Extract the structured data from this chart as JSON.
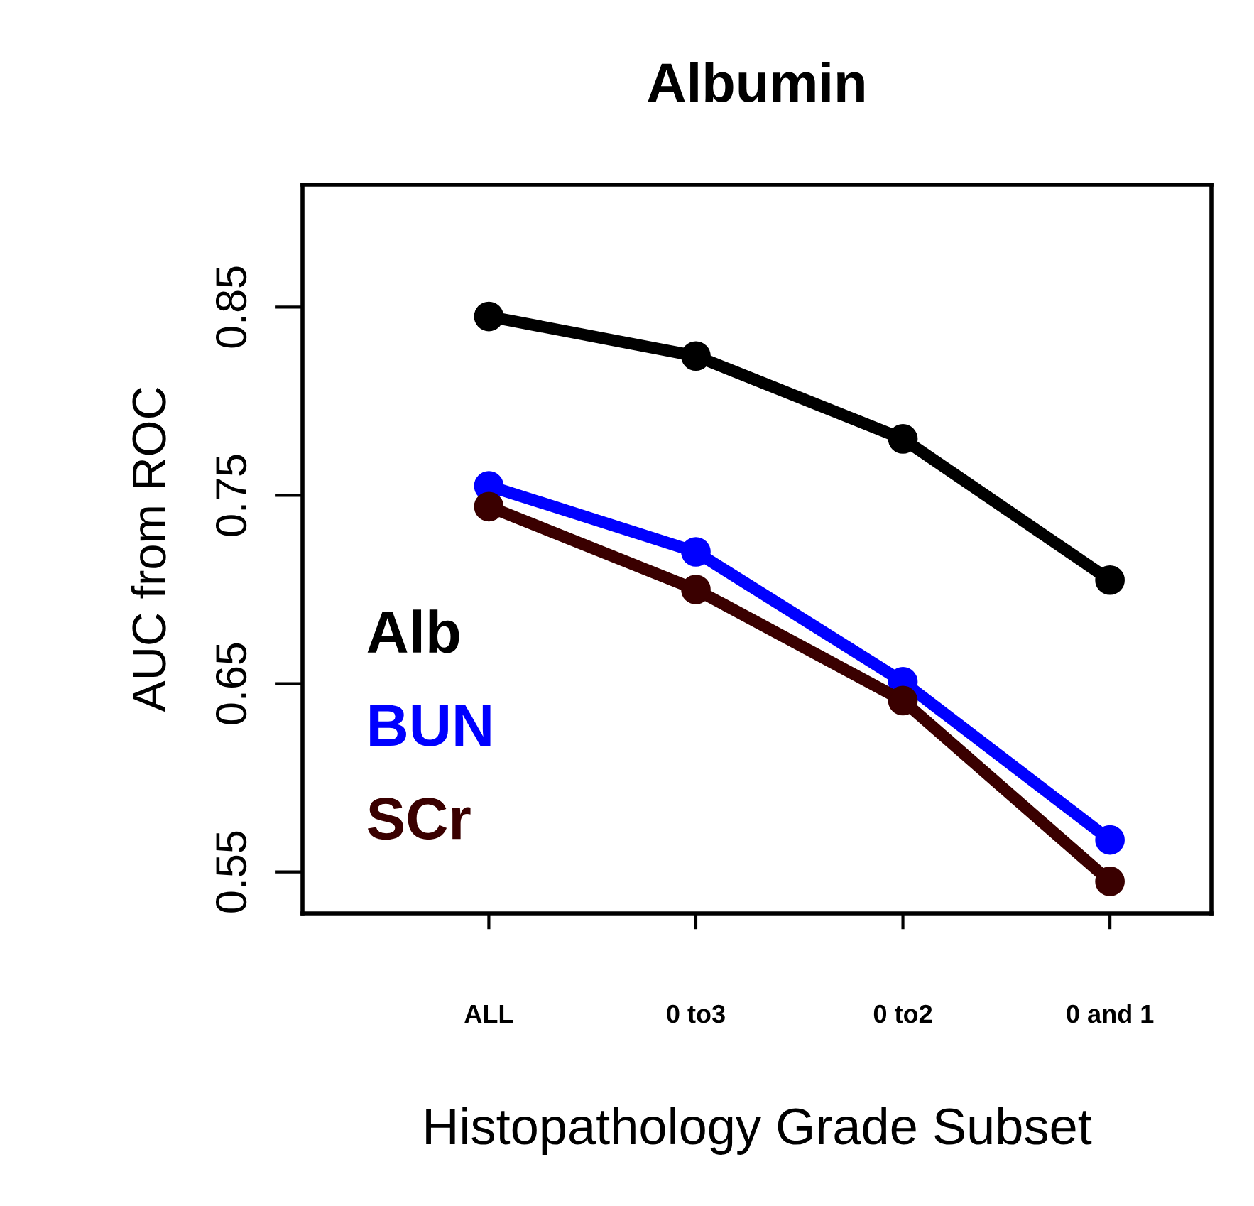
{
  "chart_data": {
    "type": "line",
    "title": "Albumin",
    "xlabel": "Histopathology Grade Subset",
    "ylabel": "AUC from ROC",
    "categories": [
      "ALL",
      "0 to3",
      "0 to2",
      "0 and 1"
    ],
    "series": [
      {
        "name": "Alb",
        "color": "#000000",
        "values": [
          0.845,
          0.824,
          0.78,
          0.705
        ]
      },
      {
        "name": "BUN",
        "color": "#0000ff",
        "values": [
          0.755,
          0.72,
          0.651,
          0.567
        ]
      },
      {
        "name": "SCr",
        "color": "#3a0000",
        "values": [
          0.744,
          0.7,
          0.641,
          0.545
        ]
      }
    ],
    "ylim": [
      0.528,
      0.915
    ],
    "yticks": [
      0.55,
      0.65,
      0.75,
      0.85
    ],
    "marker": "circle",
    "line_style": "solid",
    "legend": "bottom left",
    "grid": false
  }
}
